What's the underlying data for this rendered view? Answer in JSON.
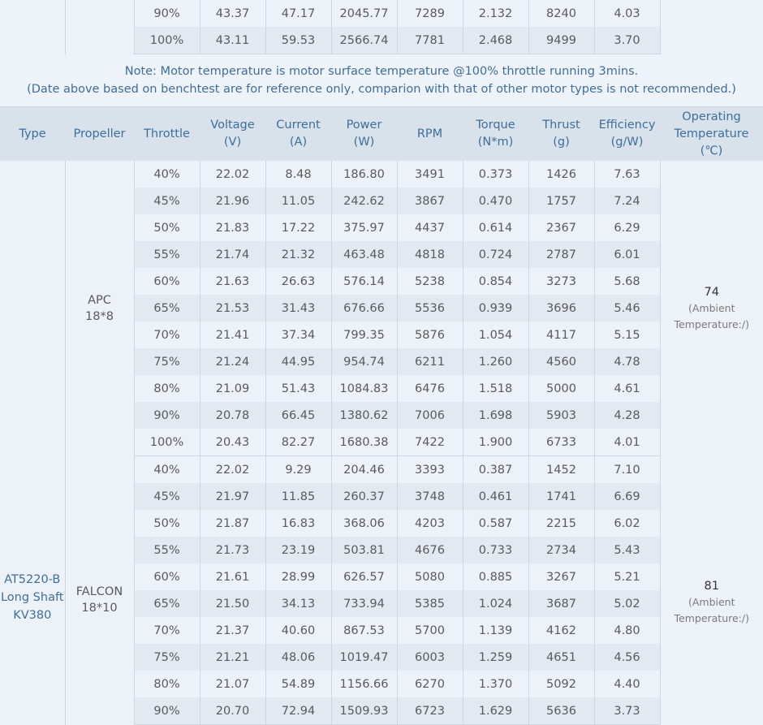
{
  "top_rows": [
    {
      "throttle": "90%",
      "voltage": "43.37",
      "current": "47.17",
      "power": "2045.77",
      "rpm": "7289",
      "torque": "2.132",
      "thrust": "8240",
      "efficiency": "4.03"
    },
    {
      "throttle": "100%",
      "voltage": "43.11",
      "current": "59.53",
      "power": "2566.74",
      "rpm": "7781",
      "torque": "2.468",
      "thrust": "9499",
      "efficiency": "3.70"
    }
  ],
  "note": {
    "line1": "Note: Motor temperature is motor surface temperature @100% throttle running 3mins.",
    "line2": "(Date above based on benchtest are for reference only, comparion with that of other motor types is not recommended.)"
  },
  "headers": {
    "type": "Type",
    "propeller": "Propeller",
    "throttle": "Throttle",
    "voltage": [
      "Voltage",
      "(V)"
    ],
    "current": [
      "Current",
      "(A)"
    ],
    "power": [
      "Power",
      "(W)"
    ],
    "rpm": "RPM",
    "torque": [
      "Torque",
      "(N*m)"
    ],
    "thrust": [
      "Thrust",
      "(g)"
    ],
    "efficiency": [
      "Efficiency",
      "(g/W)"
    ],
    "temperature": [
      "Operating",
      "Temperature",
      "(℃)"
    ]
  },
  "motor_type": [
    "AT5220-B",
    "Long Shaft",
    "KV380"
  ],
  "groups": [
    {
      "propeller": [
        "APC",
        "18*8"
      ],
      "temperature": "74",
      "ambient_note": [
        "(Ambient",
        "Temperature:/)"
      ],
      "rows": [
        {
          "throttle": "40%",
          "voltage": "22.02",
          "current": "8.48",
          "power": "186.80",
          "rpm": "3491",
          "torque": "0.373",
          "thrust": "1426",
          "efficiency": "7.63"
        },
        {
          "throttle": "45%",
          "voltage": "21.96",
          "current": "11.05",
          "power": "242.62",
          "rpm": "3867",
          "torque": "0.470",
          "thrust": "1757",
          "efficiency": "7.24"
        },
        {
          "throttle": "50%",
          "voltage": "21.83",
          "current": "17.22",
          "power": "375.97",
          "rpm": "4437",
          "torque": "0.614",
          "thrust": "2367",
          "efficiency": "6.29"
        },
        {
          "throttle": "55%",
          "voltage": "21.74",
          "current": "21.32",
          "power": "463.48",
          "rpm": "4818",
          "torque": "0.724",
          "thrust": "2787",
          "efficiency": "6.01"
        },
        {
          "throttle": "60%",
          "voltage": "21.63",
          "current": "26.63",
          "power": "576.14",
          "rpm": "5238",
          "torque": "0.854",
          "thrust": "3273",
          "efficiency": "5.68"
        },
        {
          "throttle": "65%",
          "voltage": "21.53",
          "current": "31.43",
          "power": "676.66",
          "rpm": "5536",
          "torque": "0.939",
          "thrust": "3696",
          "efficiency": "5.46"
        },
        {
          "throttle": "70%",
          "voltage": "21.41",
          "current": "37.34",
          "power": "799.35",
          "rpm": "5876",
          "torque": "1.054",
          "thrust": "4117",
          "efficiency": "5.15"
        },
        {
          "throttle": "75%",
          "voltage": "21.24",
          "current": "44.95",
          "power": "954.74",
          "rpm": "6211",
          "torque": "1.260",
          "thrust": "4560",
          "efficiency": "4.78"
        },
        {
          "throttle": "80%",
          "voltage": "21.09",
          "current": "51.43",
          "power": "1084.83",
          "rpm": "6476",
          "torque": "1.518",
          "thrust": "5000",
          "efficiency": "4.61"
        },
        {
          "throttle": "90%",
          "voltage": "20.78",
          "current": "66.45",
          "power": "1380.62",
          "rpm": "7006",
          "torque": "1.698",
          "thrust": "5903",
          "efficiency": "4.28"
        },
        {
          "throttle": "100%",
          "voltage": "20.43",
          "current": "82.27",
          "power": "1680.38",
          "rpm": "7422",
          "torque": "1.900",
          "thrust": "6733",
          "efficiency": "4.01"
        }
      ]
    },
    {
      "propeller": [
        "FALCON",
        "18*10"
      ],
      "temperature": "81",
      "ambient_note": [
        "(Ambient",
        "Temperature:/)"
      ],
      "rows": [
        {
          "throttle": "40%",
          "voltage": "22.02",
          "current": "9.29",
          "power": "204.46",
          "rpm": "3393",
          "torque": "0.387",
          "thrust": "1452",
          "efficiency": "7.10"
        },
        {
          "throttle": "45%",
          "voltage": "21.97",
          "current": "11.85",
          "power": "260.37",
          "rpm": "3748",
          "torque": "0.461",
          "thrust": "1741",
          "efficiency": "6.69"
        },
        {
          "throttle": "50%",
          "voltage": "21.87",
          "current": "16.83",
          "power": "368.06",
          "rpm": "4203",
          "torque": "0.587",
          "thrust": "2215",
          "efficiency": "6.02"
        },
        {
          "throttle": "55%",
          "voltage": "21.73",
          "current": "23.19",
          "power": "503.81",
          "rpm": "4676",
          "torque": "0.733",
          "thrust": "2734",
          "efficiency": "5.43"
        },
        {
          "throttle": "60%",
          "voltage": "21.61",
          "current": "28.99",
          "power": "626.57",
          "rpm": "5080",
          "torque": "0.885",
          "thrust": "3267",
          "efficiency": "5.21"
        },
        {
          "throttle": "65%",
          "voltage": "21.50",
          "current": "34.13",
          "power": "733.94",
          "rpm": "5385",
          "torque": "1.024",
          "thrust": "3687",
          "efficiency": "5.02"
        },
        {
          "throttle": "70%",
          "voltage": "21.37",
          "current": "40.60",
          "power": "867.53",
          "rpm": "5700",
          "torque": "1.139",
          "thrust": "4162",
          "efficiency": "4.80"
        },
        {
          "throttle": "75%",
          "voltage": "21.21",
          "current": "48.06",
          "power": "1019.47",
          "rpm": "6003",
          "torque": "1.259",
          "thrust": "4651",
          "efficiency": "4.56"
        },
        {
          "throttle": "80%",
          "voltage": "21.07",
          "current": "54.89",
          "power": "1156.66",
          "rpm": "6270",
          "torque": "1.370",
          "thrust": "5092",
          "efficiency": "4.40"
        },
        {
          "throttle": "90%",
          "voltage": "20.70",
          "current": "72.94",
          "power": "1509.93",
          "rpm": "6723",
          "torque": "1.629",
          "thrust": "5636",
          "efficiency": "3.73"
        }
      ]
    }
  ]
}
